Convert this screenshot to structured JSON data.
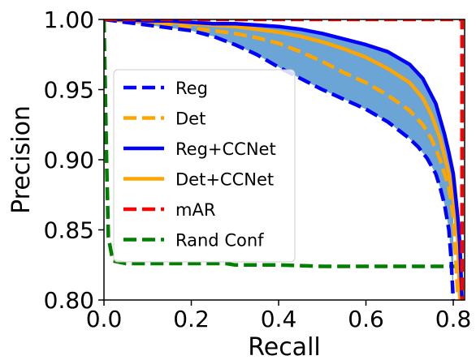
{
  "chart_data": {
    "type": "line",
    "title": "",
    "xlabel": "Recall",
    "ylabel": "Precision",
    "xlim": [
      0.0,
      0.826
    ],
    "ylim": [
      0.8,
      1.0
    ],
    "x_ticks": [
      "0.0",
      "0.2",
      "0.4",
      "0.6",
      "0.8"
    ],
    "x_tick_values": [
      0.0,
      0.2,
      0.4,
      0.6,
      0.8
    ],
    "y_ticks": [
      "0.80",
      "0.85",
      "0.90",
      "0.95",
      "1.00"
    ],
    "y_tick_values": [
      0.8,
      0.85,
      0.9,
      0.95,
      1.0
    ],
    "grid": false,
    "legend_position": "center-left",
    "fill_between": {
      "upper_series": "Reg+CCNet",
      "lower_series": "Reg",
      "color": "#5b9bd0"
    },
    "series": [
      {
        "name": "Reg",
        "color": "#0000ff",
        "style": "dashed",
        "x": [
          0.0,
          0.05,
          0.1,
          0.15,
          0.2,
          0.25,
          0.3,
          0.35,
          0.4,
          0.45,
          0.5,
          0.55,
          0.6,
          0.65,
          0.7,
          0.72,
          0.74,
          0.76,
          0.77,
          0.78,
          0.79,
          0.795,
          0.8
        ],
        "y": [
          1.0,
          0.998,
          0.996,
          0.994,
          0.992,
          0.988,
          0.982,
          0.975,
          0.966,
          0.958,
          0.95,
          0.943,
          0.936,
          0.927,
          0.915,
          0.909,
          0.901,
          0.89,
          0.88,
          0.868,
          0.85,
          0.83,
          0.8
        ]
      },
      {
        "name": "Det",
        "color": "#ffa500",
        "style": "dashed",
        "x": [
          0.0,
          0.05,
          0.1,
          0.15,
          0.2,
          0.25,
          0.3,
          0.35,
          0.4,
          0.45,
          0.5,
          0.55,
          0.6,
          0.65,
          0.7,
          0.73,
          0.75,
          0.77,
          0.79,
          0.8,
          0.81
        ],
        "y": [
          1.0,
          0.998,
          0.997,
          0.996,
          0.994,
          0.992,
          0.99,
          0.987,
          0.983,
          0.977,
          0.97,
          0.962,
          0.955,
          0.946,
          0.935,
          0.925,
          0.915,
          0.9,
          0.88,
          0.86,
          0.805
        ]
      },
      {
        "name": "Reg+CCNet",
        "color": "#0000ff",
        "style": "solid",
        "x": [
          0.0,
          0.05,
          0.1,
          0.15,
          0.2,
          0.25,
          0.3,
          0.35,
          0.4,
          0.45,
          0.5,
          0.55,
          0.6,
          0.65,
          0.7,
          0.73,
          0.76,
          0.78,
          0.79,
          0.8,
          0.81,
          0.815,
          0.82
        ],
        "y": [
          1.0,
          1.0,
          0.999,
          0.999,
          0.998,
          0.997,
          0.997,
          0.996,
          0.995,
          0.993,
          0.99,
          0.986,
          0.982,
          0.977,
          0.968,
          0.958,
          0.94,
          0.918,
          0.905,
          0.89,
          0.86,
          0.84,
          0.8
        ]
      },
      {
        "name": "Det+CCNet",
        "color": "#ffa500",
        "style": "solid",
        "x": [
          0.0,
          0.05,
          0.1,
          0.15,
          0.2,
          0.25,
          0.3,
          0.35,
          0.4,
          0.45,
          0.5,
          0.55,
          0.6,
          0.65,
          0.7,
          0.73,
          0.75,
          0.77,
          0.79,
          0.8,
          0.81,
          0.815
        ],
        "y": [
          1.0,
          0.999,
          0.998,
          0.998,
          0.997,
          0.996,
          0.995,
          0.993,
          0.991,
          0.988,
          0.984,
          0.979,
          0.973,
          0.965,
          0.955,
          0.944,
          0.932,
          0.915,
          0.89,
          0.872,
          0.845,
          0.8
        ]
      },
      {
        "name": "mAR",
        "color": "#ff0000",
        "style": "dashed",
        "x": [
          0.0,
          0.82,
          0.82
        ],
        "y": [
          1.0,
          1.0,
          0.8
        ]
      },
      {
        "name": "Rand Conf",
        "color": "#008000",
        "style": "dashed",
        "x": [
          0.0,
          0.003,
          0.006,
          0.01,
          0.02,
          0.05,
          0.1,
          0.2,
          0.28,
          0.3,
          0.4,
          0.5,
          0.6,
          0.7,
          0.8,
          0.826
        ],
        "y": [
          1.0,
          0.95,
          0.9,
          0.845,
          0.828,
          0.826,
          0.826,
          0.826,
          0.826,
          0.825,
          0.825,
          0.824,
          0.824,
          0.824,
          0.824,
          0.824
        ]
      }
    ]
  }
}
